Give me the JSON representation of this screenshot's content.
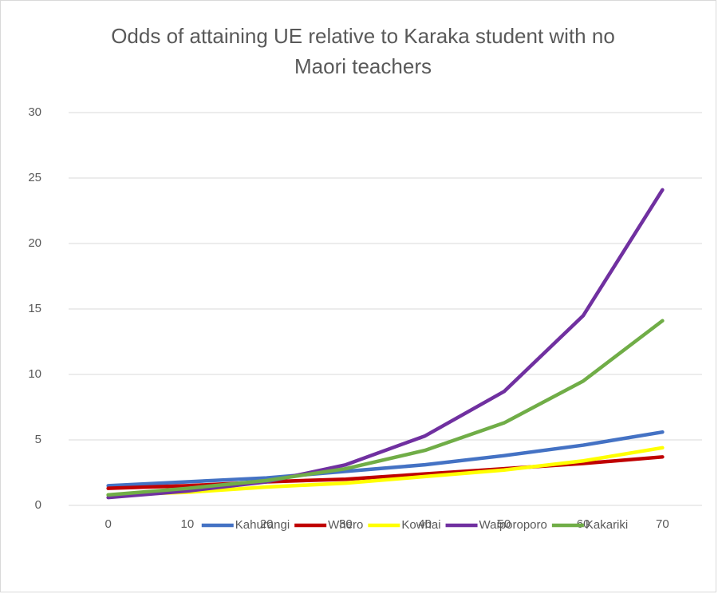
{
  "chart_data": {
    "type": "line",
    "title": "Odds of attaining UE relative to Karaka student with no Maori teachers",
    "x": [
      0,
      10,
      20,
      30,
      40,
      50,
      60,
      70
    ],
    "xlim": [
      -5,
      75
    ],
    "xticks": [
      0,
      10,
      20,
      30,
      40,
      50,
      60,
      70
    ],
    "ylim": [
      0,
      30
    ],
    "yticks": [
      0,
      5,
      10,
      15,
      20,
      25,
      30
    ],
    "grid": true,
    "legend": "bottom",
    "series": [
      {
        "name": "Kahurangi",
        "color": "#4472c4",
        "values": [
          1.5,
          1.8,
          2.1,
          2.6,
          3.1,
          3.8,
          4.6,
          5.6
        ]
      },
      {
        "name": "Whero",
        "color": "#c00000",
        "values": [
          1.3,
          1.5,
          1.8,
          2.0,
          2.4,
          2.8,
          3.2,
          3.7
        ]
      },
      {
        "name": "Kowhai",
        "color": "#ffff00",
        "values": [
          0.8,
          1.0,
          1.4,
          1.7,
          2.2,
          2.7,
          3.4,
          4.4
        ]
      },
      {
        "name": "Waiporoporo",
        "color": "#7030a0",
        "values": [
          0.6,
          1.1,
          1.8,
          3.1,
          5.3,
          8.7,
          14.5,
          24.1
        ]
      },
      {
        "name": "Kakariki",
        "color": "#70ad47",
        "values": [
          0.8,
          1.3,
          1.9,
          2.8,
          4.2,
          6.3,
          9.5,
          14.1
        ]
      }
    ]
  }
}
